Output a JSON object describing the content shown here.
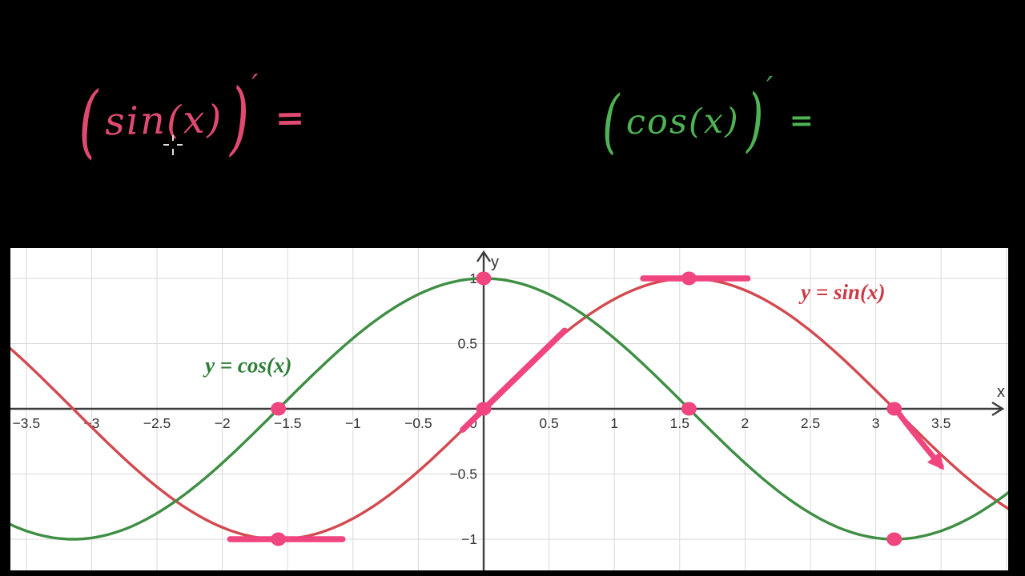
{
  "formulas": {
    "sin": {
      "open": "(",
      "body": "sin(x)",
      "close": ")",
      "prime": "′",
      "equals": "=",
      "color": "#e04a70"
    },
    "cos": {
      "open": "(",
      "body": "cos(x)",
      "close": ")",
      "prime": "′",
      "equals": "=",
      "color": "#4db353"
    }
  },
  "chart_data": {
    "type": "line",
    "title": "",
    "xlabel": "x",
    "ylabel": "y",
    "xlim": [
      -3.63,
      4.02
    ],
    "ylim": [
      -1.24,
      1.24
    ],
    "grid": true,
    "grid_step": 0.5,
    "x_ticks": [
      -3.5,
      -3,
      -2.5,
      -2,
      -1.5,
      -1,
      -0.5,
      0,
      0.5,
      1,
      1.5,
      2,
      2.5,
      3,
      3.5
    ],
    "y_ticks": [
      1,
      0.5,
      -0.5,
      -1
    ],
    "colors": {
      "grid": "#d9d9d9",
      "axis": "#3d3d3d",
      "tick": "#333333"
    },
    "series": [
      {
        "name": "y = sin(x)",
        "fn": "sin",
        "color": "#d2494f",
        "label_color": "#cc3a45",
        "label_pos": [
          2.75,
          0.84
        ]
      },
      {
        "name": "y = cos(x)",
        "fn": "cos",
        "color": "#3e8e44",
        "label_color": "#2c7d36",
        "label_pos": [
          -1.8,
          0.28
        ]
      }
    ],
    "annotations": {
      "color": "#f0457e",
      "dots": [
        [
          0,
          1
        ],
        [
          1.5708,
          1
        ],
        [
          -1.5708,
          0
        ],
        [
          0,
          0
        ],
        [
          1.5708,
          0
        ],
        [
          3.1416,
          0
        ],
        [
          -1.5708,
          -1
        ],
        [
          3.1416,
          -1
        ]
      ],
      "tangent_segments": [
        {
          "from": [
            1.22,
            1
          ],
          "to": [
            2.02,
            1
          ]
        },
        {
          "from": [
            -1.94,
            -1
          ],
          "to": [
            -1.08,
            -1
          ]
        },
        {
          "from": [
            -0.16,
            -0.16
          ],
          "to": [
            0.62,
            0.6
          ]
        }
      ],
      "arrow": {
        "from": [
          3.18,
          -0.04
        ],
        "ctrl": [
          3.3,
          -0.2
        ],
        "to": [
          3.5,
          -0.44
        ]
      }
    }
  }
}
